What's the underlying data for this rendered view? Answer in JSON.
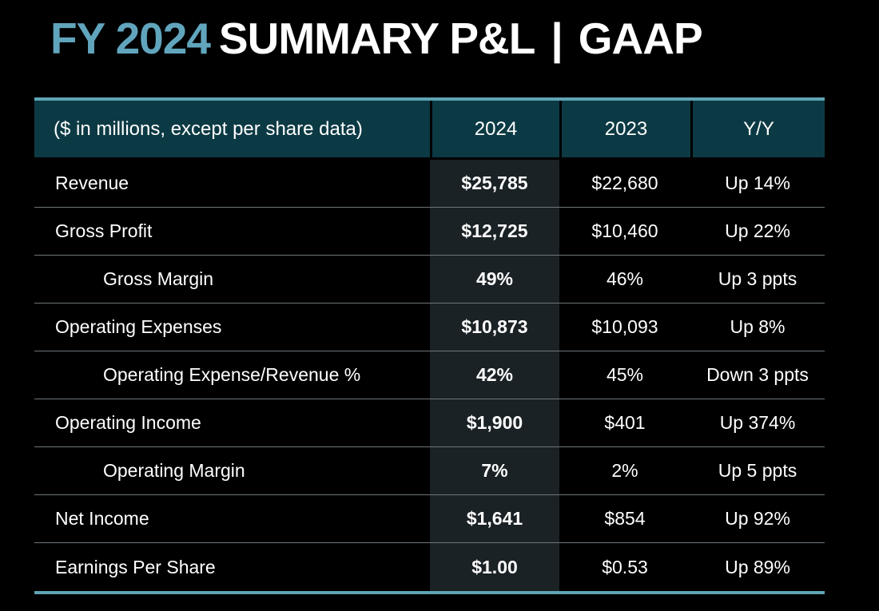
{
  "title": {
    "fy": "FY 2024",
    "main": "SUMMARY P&L",
    "separator": "|",
    "suffix": "GAAP"
  },
  "table": {
    "header": {
      "caption": "($ in millions, except per share data)",
      "col_2024": "2024",
      "col_2023": "2023",
      "col_yy": "Y/Y"
    },
    "rows": [
      {
        "label": "Revenue",
        "indent": false,
        "v2024": "$25,785",
        "v2023": "$22,680",
        "yy": "Up 14%"
      },
      {
        "label": "Gross Profit",
        "indent": false,
        "v2024": "$12,725",
        "v2023": "$10,460",
        "yy": "Up 22%"
      },
      {
        "label": "Gross Margin",
        "indent": true,
        "v2024": "49%",
        "v2023": "46%",
        "yy": "Up 3 ppts"
      },
      {
        "label": "Operating Expenses",
        "indent": false,
        "v2024": "$10,873",
        "v2023": "$10,093",
        "yy": "Up 8%"
      },
      {
        "label": "Operating Expense/Revenue %",
        "indent": true,
        "v2024": "42%",
        "v2023": "45%",
        "yy": "Down 3 ppts"
      },
      {
        "label": "Operating Income",
        "indent": false,
        "v2024": "$1,900",
        "v2023": "$401",
        "yy": "Up 374%"
      },
      {
        "label": "Operating Margin",
        "indent": true,
        "v2024": "7%",
        "v2023": "2%",
        "yy": "Up 5 ppts"
      },
      {
        "label": "Net Income",
        "indent": false,
        "v2024": "$1,641",
        "v2023": "$854",
        "yy": "Up 92%"
      },
      {
        "label": "Earnings Per Share",
        "indent": false,
        "v2024": "$1.00",
        "v2023": "$0.53",
        "yy": "Up 89%"
      }
    ]
  },
  "chart_data": {
    "type": "table",
    "title": "FY 2024 SUMMARY P&L | GAAP",
    "columns": [
      "($ in millions, except per share data)",
      "2024",
      "2023",
      "Y/Y"
    ],
    "rows": [
      [
        "Revenue",
        "$25,785",
        "$22,680",
        "Up 14%"
      ],
      [
        "Gross Profit",
        "$12,725",
        "$10,460",
        "Up 22%"
      ],
      [
        "Gross Margin",
        "49%",
        "46%",
        "Up 3 ppts"
      ],
      [
        "Operating Expenses",
        "$10,873",
        "$10,093",
        "Up 8%"
      ],
      [
        "Operating Expense/Revenue %",
        "42%",
        "45%",
        "Down 3 ppts"
      ],
      [
        "Operating Income",
        "$1,900",
        "$401",
        "Up 374%"
      ],
      [
        "Operating Margin",
        "7%",
        "2%",
        "Up 5 ppts"
      ],
      [
        "Net Income",
        "$1,641",
        "$854",
        "Up 92%"
      ],
      [
        "Earnings Per Share",
        "$1.00",
        "$0.53",
        "Up 89%"
      ]
    ]
  },
  "colors": {
    "background": "#000000",
    "text": "#ffffff",
    "title-accent": "#61a5bd",
    "header-bg": "#0c3a44",
    "table-accent-border": "#5fa4b5",
    "highlight-col-bg": "#1b2226",
    "divider": "#6e767a"
  }
}
